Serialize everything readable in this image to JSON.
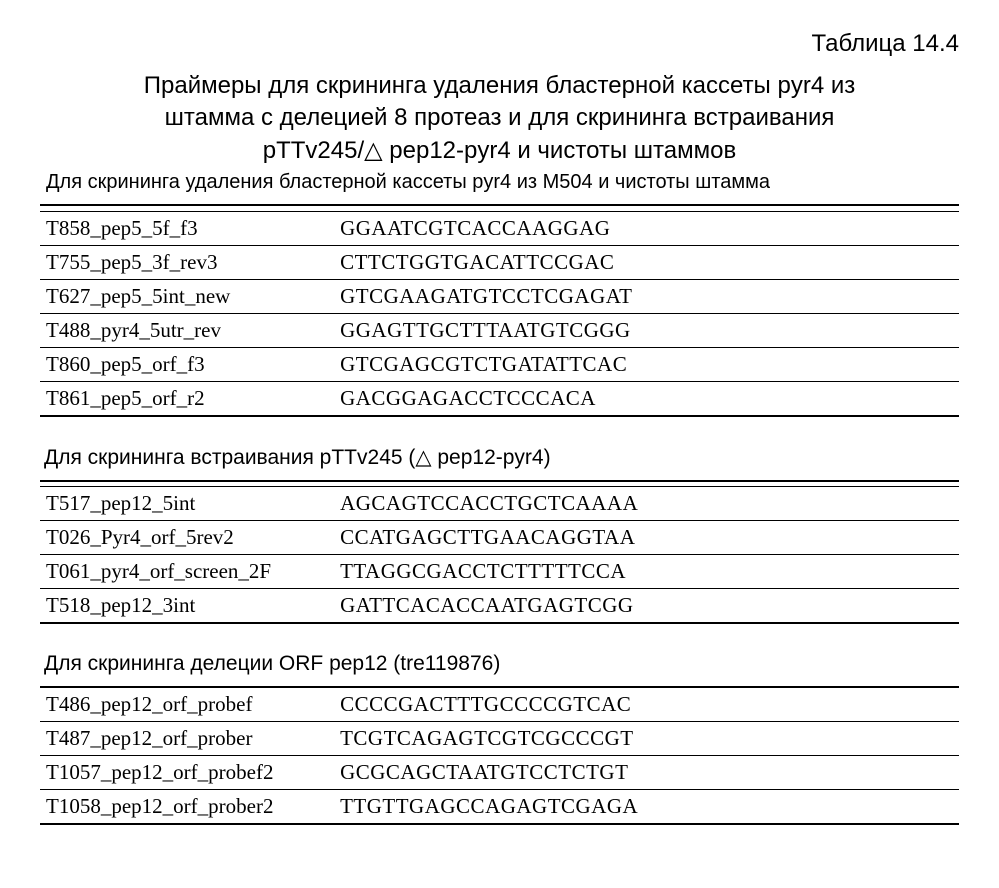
{
  "tableLabel": "Таблица 14.4",
  "title": {
    "line1": "Праймеры для скрининга удаления бластерной кассеты pyr4  из",
    "line2": "штамма с делецией 8 протеаз и для скрининга встраивания",
    "line3": "pTTv245/△ pep12-pyr4 и чистоты штаммов"
  },
  "subtitle": "Для скрининга удаления бластерной кассеты pyr4 из M504 и чистоты штамма",
  "section1": {
    "rows": [
      {
        "name": "T858_pep5_5f_f3",
        "seq": "GGAATCGTCACCAAGGAG"
      },
      {
        "name": "T755_pep5_3f_rev3",
        "seq": "CTTCTGGTGACATTCCGAC"
      },
      {
        "name": "T627_pep5_5int_new",
        "seq": "GTCGAAGATGTCCTCGAGAT"
      },
      {
        "name": "T488_pyr4_5utr_rev",
        "seq": "GGAGTTGCTTTAATGTCGGG"
      },
      {
        "name": "T860_pep5_orf_f3",
        "seq": "GTCGAGCGTCTGATATTCAC"
      },
      {
        "name": "T861_pep5_orf_r2",
        "seq": "GACGGAGACCTCCCACA"
      }
    ]
  },
  "section2": {
    "header": "Для скрининга встраивания pTTv245 (△ pep12-pyr4)",
    "rows": [
      {
        "name": "T517_pep12_5int",
        "seq": "AGCAGTCCACCTGCTCAAAA"
      },
      {
        "name": "T026_Pyr4_orf_5rev2",
        "seq": "CCATGAGCTTGAACAGGTAA"
      },
      {
        "name": "T061_pyr4_orf_screen_2F",
        "seq": "TTAGGCGACCTCTTTTTCCA"
      },
      {
        "name": "T518_pep12_3int",
        "seq": "GATTCACACCAATGAGTCGG"
      }
    ]
  },
  "section3": {
    "header": "Для скрининга делеции ORF pep12 (tre119876)",
    "rows": [
      {
        "name": "T486_pep12_orf_probef",
        "seq": "CCCCGACTTTGCCCCGTCAC"
      },
      {
        "name": "T487_pep12_orf_prober",
        "seq": "TCGTCAGAGTCGTCGCCCGT"
      },
      {
        "name": "T1057_pep12_orf_probef2",
        "seq": "GCGCAGCTAATGTCCTCTGT"
      },
      {
        "name": "T1058_pep12_orf_prober2",
        "seq": "TTGTTGAGCCAGAGTCGAGA"
      }
    ]
  }
}
